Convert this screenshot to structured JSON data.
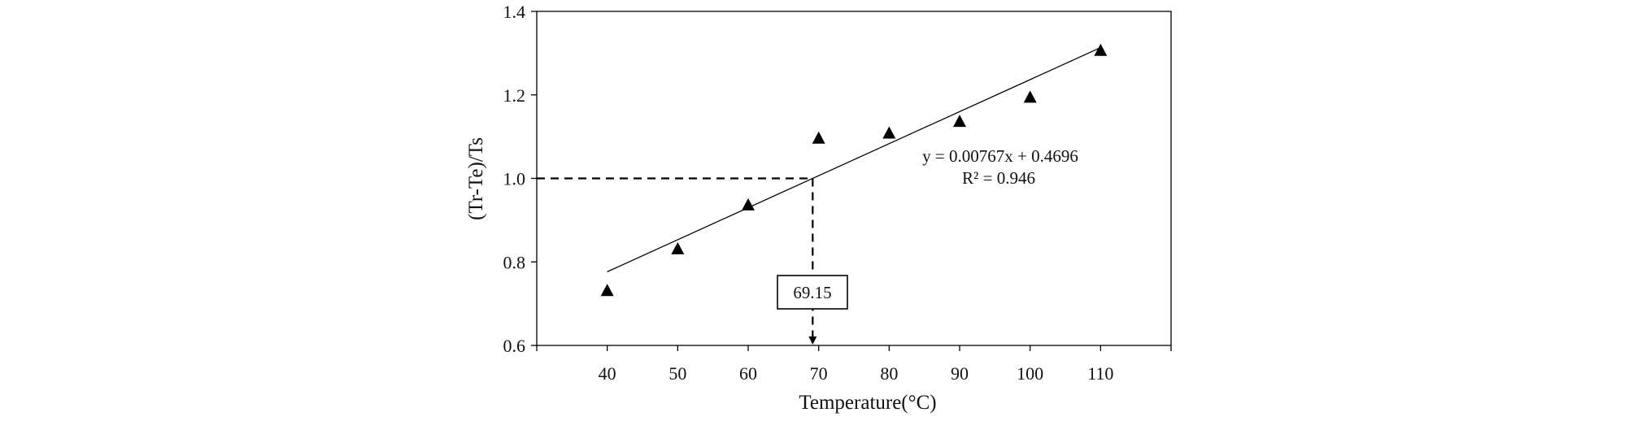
{
  "chart_data": {
    "type": "scatter",
    "xlabel": "Temperature(°C)",
    "ylabel": "(Tr-Te)/Ts",
    "xlim": [
      30,
      120
    ],
    "ylim": [
      0.6,
      1.4
    ],
    "x_ticks": [
      40,
      50,
      60,
      70,
      80,
      90,
      100,
      110
    ],
    "y_ticks": [
      0.6,
      0.8,
      1.0,
      1.2,
      1.4
    ],
    "x_tick_labels": [
      "40",
      "50",
      "60",
      "70",
      "80",
      "90",
      "100",
      "110"
    ],
    "y_tick_labels": [
      "0.6",
      "0.8",
      "1.0",
      "1.2",
      "1.4"
    ],
    "grid": false,
    "marker": "triangle",
    "series": [
      {
        "x": [
          40,
          50,
          60,
          70,
          80,
          90,
          100,
          110
        ],
        "y": [
          0.73,
          0.83,
          0.935,
          1.095,
          1.107,
          1.135,
          1.193,
          1.305
        ]
      }
    ],
    "trendline": {
      "slope": 0.00767,
      "intercept": 0.4696,
      "x_range": [
        40,
        110
      ],
      "equation": "y = 0.00767x + 0.4696",
      "r_squared": "R² = 0.946"
    },
    "reference": {
      "y": 1.0,
      "x": 69.15,
      "label": "69.15"
    },
    "colors": {
      "marker": "#000000",
      "line": "#000000",
      "axis": "#000000"
    }
  }
}
